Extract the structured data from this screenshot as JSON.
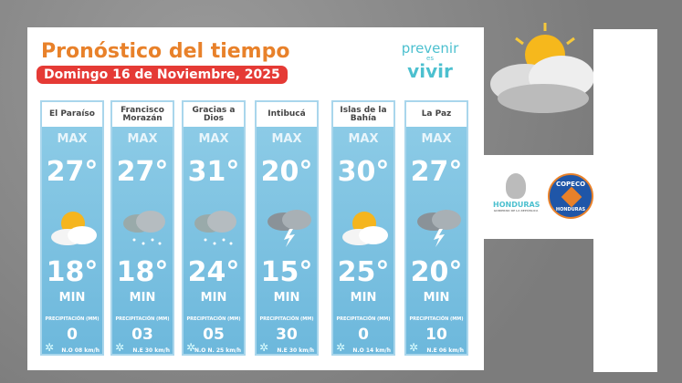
{
  "title": "Pronóstico del tiempo",
  "date": "Domingo 16 de Noviembre, 2025",
  "logo": {
    "line1": "prevenir",
    "line2": "es",
    "line3": "vivir"
  },
  "labels": {
    "max": "MAX",
    "min": "MIN",
    "precip": "PRECIPITACIÓN (MM)"
  },
  "regions": [
    {
      "name": "El Paraíso",
      "max": "27°",
      "min": "18°",
      "precip": "0",
      "wind": "N.O 08 km/h",
      "icon": "sun-cloud"
    },
    {
      "name": "Francisco Morazán",
      "max": "27°",
      "min": "18°",
      "precip": "03",
      "wind": "N.E 30 km/h",
      "icon": "rain-cloud"
    },
    {
      "name": "Gracias a Dios",
      "max": "31°",
      "min": "24°",
      "precip": "05",
      "wind": "N.O N. 25 km/h",
      "icon": "rain-cloud"
    },
    {
      "name": "Intibucá",
      "max": "20°",
      "min": "15°",
      "precip": "30",
      "wind": "N.E 30 km/h",
      "icon": "storm-cloud"
    },
    {
      "name": "Islas de la Bahía",
      "max": "30°",
      "min": "25°",
      "precip": "0",
      "wind": "N.O 14 km/h",
      "icon": "sun-cloud"
    },
    {
      "name": "La Paz",
      "max": "27°",
      "min": "20°",
      "precip": "10",
      "wind": "N.E 06 km/h",
      "icon": "storm-cloud"
    }
  ],
  "partners": {
    "honduras": "HONDURAS",
    "honduras_sub": "GOBIERNO DE LA REPÚBLICA",
    "copeco_top": "COPECO",
    "copeco_bottom": "HONDURAS"
  }
}
